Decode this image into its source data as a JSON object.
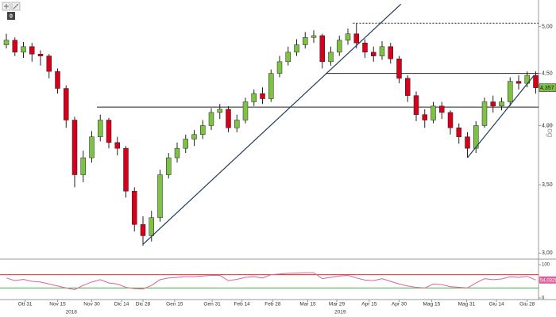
{
  "chart_data": [
    {
      "type": "candlestick",
      "open": [
        4.8,
        4.85,
        4.72,
        4.78,
        4.7,
        4.68,
        4.52,
        4.35,
        4.05,
        3.58,
        3.72,
        3.9,
        4.05,
        3.85,
        3.8,
        3.45,
        3.2,
        3.12,
        3.25,
        3.58,
        3.72,
        3.8,
        3.88,
        3.92,
        4.0,
        4.12,
        4.15,
        3.98,
        4.05,
        4.22,
        4.3,
        4.25,
        4.5,
        4.62,
        4.72,
        4.8,
        4.88,
        4.9,
        4.62,
        4.72,
        4.85,
        4.92,
        4.82,
        4.72,
        4.68,
        4.78,
        4.65,
        4.45,
        4.28,
        4.1,
        4.05,
        4.18,
        4.12,
        3.98,
        3.9,
        3.8,
        4.0,
        4.22,
        4.18,
        4.22,
        4.42,
        4.4,
        4.48
      ],
      "high": [
        4.92,
        4.88,
        4.83,
        4.82,
        4.74,
        4.7,
        4.55,
        4.38,
        4.08,
        3.78,
        3.95,
        4.1,
        4.07,
        3.9,
        3.82,
        3.48,
        3.26,
        3.3,
        3.62,
        3.76,
        3.85,
        3.92,
        3.96,
        4.05,
        4.16,
        4.2,
        4.18,
        4.1,
        4.26,
        4.34,
        4.36,
        4.54,
        4.68,
        4.78,
        4.86,
        4.94,
        4.96,
        4.92,
        4.78,
        4.9,
        4.98,
        5.04,
        4.86,
        4.78,
        4.84,
        4.82,
        4.68,
        4.48,
        4.32,
        4.15,
        4.22,
        4.22,
        4.14,
        4.02,
        3.94,
        4.04,
        4.26,
        4.28,
        4.26,
        4.46,
        4.48,
        4.52,
        4.52
      ],
      "low": [
        4.76,
        4.68,
        4.66,
        4.62,
        4.58,
        4.45,
        4.3,
        3.98,
        3.48,
        3.52,
        3.68,
        3.86,
        3.8,
        3.74,
        3.4,
        3.15,
        3.05,
        3.08,
        3.22,
        3.55,
        3.68,
        3.76,
        3.82,
        3.88,
        3.96,
        4.06,
        3.94,
        3.94,
        4.02,
        4.18,
        4.2,
        4.22,
        4.46,
        4.58,
        4.68,
        4.76,
        4.82,
        4.55,
        4.58,
        4.68,
        4.8,
        4.76,
        4.66,
        4.62,
        4.64,
        4.6,
        4.4,
        4.22,
        4.04,
        3.98,
        4.02,
        4.06,
        3.92,
        3.84,
        3.72,
        3.76,
        3.98,
        4.12,
        4.14,
        4.18,
        4.34,
        4.36,
        4.3
      ],
      "close": [
        4.85,
        4.72,
        4.78,
        4.7,
        4.68,
        4.52,
        4.35,
        4.05,
        3.58,
        3.72,
        3.9,
        4.05,
        3.85,
        3.8,
        3.45,
        3.2,
        3.12,
        3.25,
        3.58,
        3.72,
        3.8,
        3.88,
        3.92,
        4.0,
        4.12,
        4.15,
        3.98,
        4.05,
        4.22,
        4.3,
        4.25,
        4.5,
        4.62,
        4.72,
        4.8,
        4.88,
        4.9,
        4.62,
        4.72,
        4.85,
        4.92,
        4.82,
        4.72,
        4.68,
        4.78,
        4.65,
        4.45,
        4.28,
        4.1,
        4.05,
        4.18,
        4.12,
        3.98,
        3.9,
        3.8,
        4.0,
        4.22,
        4.18,
        4.22,
        4.42,
        4.4,
        4.48,
        4.357
      ],
      "up_color": "#7dc242",
      "down_color": "#d6001c",
      "log": true,
      "ylim": [
        2.97,
        5.31
      ],
      "yticks": [
        {
          "value": 3,
          "label": "3,00"
        },
        {
          "value": 3.5,
          "label": "3,50"
        },
        {
          "value": 4,
          "label": "4,00"
        },
        {
          "value": 4.5,
          "label": "4,50"
        },
        {
          "value": 5,
          "label": "5,00"
        }
      ],
      "y_axis_label": "Log",
      "last_price": {
        "value": 4.357,
        "label": "4,357"
      },
      "levels": [
        {
          "start": 10.6,
          "value": 4.17,
          "dashed": false
        },
        {
          "start": 37.4,
          "value": 4.5,
          "dashed": false
        },
        {
          "start": 40.6,
          "value": 5.04,
          "dashed": true
        }
      ],
      "trendlines": [
        {
          "x": [
            16,
            46.2
          ],
          "y": [
            3.06,
            5.26
          ]
        },
        {
          "x": [
            54,
            61.8
          ],
          "y": [
            3.72,
            4.48
          ]
        }
      ],
      "toolbar_badge": "0"
    },
    {
      "type": "line",
      "values": [
        60,
        52,
        56,
        50,
        48,
        42,
        36,
        30,
        25,
        38,
        48,
        55,
        45,
        42,
        32,
        28,
        27,
        38,
        55,
        60,
        62,
        64,
        64,
        66,
        68,
        68,
        52,
        56,
        62,
        64,
        60,
        70,
        72,
        74,
        75,
        76,
        76,
        58,
        62,
        66,
        68,
        60,
        54,
        52,
        58,
        50,
        42,
        36,
        32,
        30,
        42,
        40,
        34,
        32,
        30,
        45,
        58,
        55,
        57,
        64,
        62,
        65,
        54.0329
      ],
      "color": "#e0609a",
      "ylim": [
        0,
        100
      ],
      "yticks": [
        0,
        50,
        100
      ],
      "levels": [
        {
          "value": 70,
          "color": "#e0302a"
        },
        {
          "value": 30,
          "color": "#3cb043"
        }
      ],
      "last_value": {
        "value": 54.0329,
        "label": "54,0329"
      },
      "xticks": [
        {
          "value": 2.2,
          "label": "Ott 31"
        },
        {
          "value": 6,
          "label": "Nov 15"
        },
        {
          "value": 10,
          "label": "Nov 30"
        },
        {
          "value": 13.5,
          "label": "Dic 14"
        },
        {
          "value": 16,
          "label": "Dic 28"
        },
        {
          "value": 19.7,
          "label": "Gen 15"
        },
        {
          "value": 24.1,
          "label": "Gen 31"
        },
        {
          "value": 27.6,
          "label": "Feb 14"
        },
        {
          "value": 31.2,
          "label": "Feb 28"
        },
        {
          "value": 35.3,
          "label": "Mar 15"
        },
        {
          "value": 38.7,
          "label": "Mar 29"
        },
        {
          "value": 42.5,
          "label": "Apr 15"
        },
        {
          "value": 46,
          "label": "Apr 30"
        },
        {
          "value": 49.8,
          "label": "Mag 15"
        },
        {
          "value": 53.9,
          "label": "Mag 31"
        },
        {
          "value": 57.4,
          "label": "Giu 14"
        },
        {
          "value": 61,
          "label": "Giu 28"
        }
      ],
      "years": [
        {
          "value": 7.6,
          "label": "2018"
        },
        {
          "value": 39.1,
          "label": "2019"
        }
      ]
    }
  ]
}
